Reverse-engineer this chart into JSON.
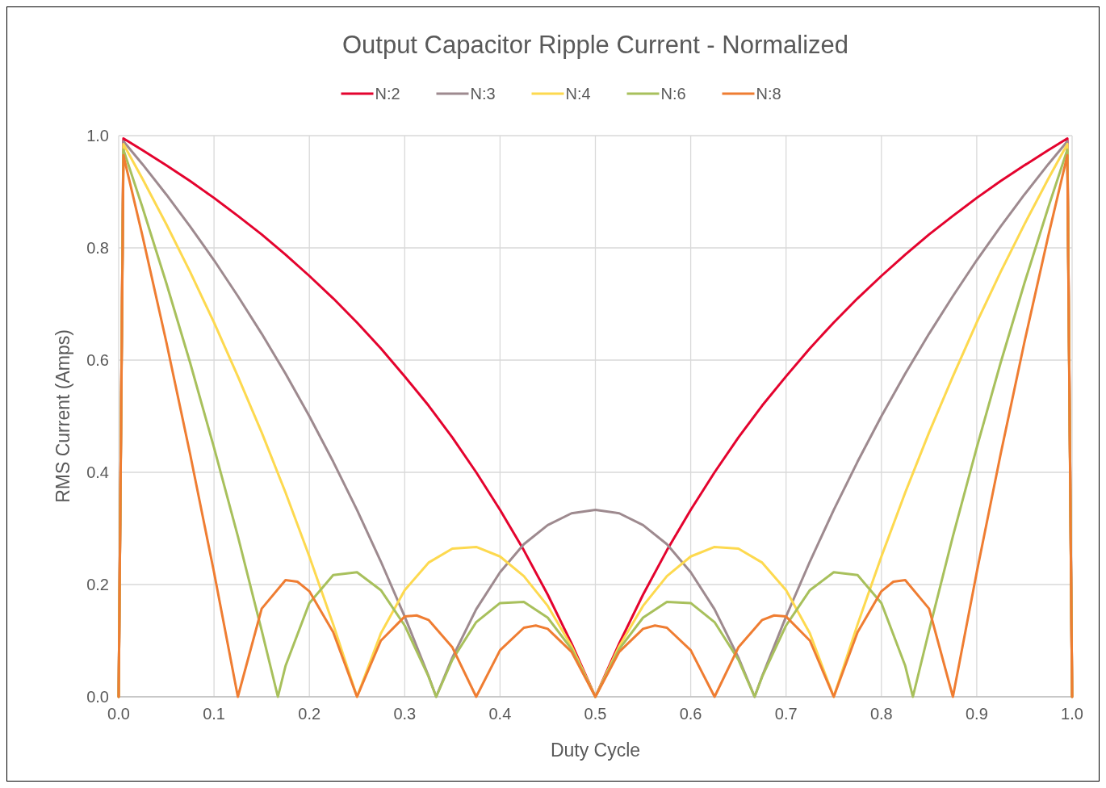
{
  "chart_data": {
    "type": "line",
    "title": "Output Capacitor Ripple Current - Normalized",
    "xlabel": "Duty Cycle",
    "ylabel": "RMS Current  (Amps)",
    "xlim": [
      0,
      1
    ],
    "ylim": [
      0,
      1
    ],
    "xticks": [
      {
        "value": 0,
        "label": "0.0"
      },
      0.1,
      0.2,
      0.3,
      0.4,
      0.5,
      0.6,
      0.7,
      0.8,
      0.9,
      {
        "value": 1,
        "label": "1.0"
      }
    ],
    "yticks": [
      {
        "value": 0,
        "label": "0.0"
      },
      0.2,
      0.4,
      0.6,
      0.8,
      {
        "value": 1,
        "label": "1.0"
      }
    ],
    "grid": true,
    "legend": "top",
    "marker": "none",
    "line_style": "solid",
    "series": [
      {
        "name": "N:2",
        "color": "#e4032e",
        "x": [
          0,
          0.005,
          0.025,
          0.05,
          0.075,
          0.1,
          0.125,
          0.15,
          0.175,
          0.2,
          0.225,
          0.25,
          0.275,
          0.3,
          0.325,
          0.35,
          0.375,
          0.4,
          0.425,
          0.45,
          0.475,
          0.5,
          0.525,
          0.55,
          0.575,
          0.6,
          0.625,
          0.65,
          0.675,
          0.7,
          0.725,
          0.75,
          0.775,
          0.8,
          0.825,
          0.85,
          0.875,
          0.9,
          0.925,
          0.95,
          0.975,
          0.995,
          1
        ],
        "values": [
          0,
          0.995,
          0.974,
          0.947,
          0.919,
          0.889,
          0.857,
          0.824,
          0.788,
          0.75,
          0.71,
          0.667,
          0.621,
          0.571,
          0.519,
          0.462,
          0.4,
          0.333,
          0.261,
          0.182,
          0.095,
          0,
          0.095,
          0.182,
          0.261,
          0.333,
          0.4,
          0.462,
          0.519,
          0.571,
          0.621,
          0.667,
          0.71,
          0.75,
          0.788,
          0.824,
          0.857,
          0.889,
          0.919,
          0.947,
          0.974,
          0.995,
          0
        ]
      },
      {
        "name": "N:3",
        "color": "#9e8a8f",
        "x": [
          0,
          0.005,
          0.025,
          0.05,
          0.075,
          0.1,
          0.125,
          0.15,
          0.175,
          0.2,
          0.225,
          0.25,
          0.275,
          0.3,
          0.325,
          0.333,
          0.35,
          0.375,
          0.4,
          0.425,
          0.45,
          0.475,
          0.5,
          0.525,
          0.55,
          0.575,
          0.6,
          0.625,
          0.65,
          0.667,
          0.675,
          0.7,
          0.725,
          0.75,
          0.775,
          0.8,
          0.825,
          0.85,
          0.875,
          0.9,
          0.925,
          0.95,
          0.975,
          0.995,
          1
        ],
        "values": [
          0,
          0.99,
          0.949,
          0.895,
          0.838,
          0.778,
          0.714,
          0.647,
          0.576,
          0.5,
          0.419,
          0.333,
          0.241,
          0.143,
          0.037,
          0,
          0.07,
          0.156,
          0.222,
          0.272,
          0.306,
          0.327,
          0.333,
          0.327,
          0.306,
          0.272,
          0.222,
          0.156,
          0.07,
          0,
          0.037,
          0.143,
          0.241,
          0.333,
          0.419,
          0.5,
          0.576,
          0.647,
          0.714,
          0.778,
          0.838,
          0.895,
          0.949,
          0.99,
          0
        ]
      },
      {
        "name": "N:4",
        "color": "#fdd94f",
        "x": [
          0,
          0.005,
          0.025,
          0.05,
          0.075,
          0.1,
          0.125,
          0.15,
          0.175,
          0.2,
          0.225,
          0.25,
          0.275,
          0.3,
          0.325,
          0.35,
          0.375,
          0.4,
          0.425,
          0.45,
          0.475,
          0.5,
          0.525,
          0.55,
          0.575,
          0.6,
          0.625,
          0.65,
          0.675,
          0.7,
          0.725,
          0.75,
          0.775,
          0.8,
          0.825,
          0.85,
          0.875,
          0.9,
          0.925,
          0.95,
          0.975,
          0.995,
          1
        ],
        "values": [
          0,
          0.985,
          0.923,
          0.842,
          0.757,
          0.667,
          0.571,
          0.471,
          0.364,
          0.25,
          0.129,
          0,
          0.113,
          0.19,
          0.239,
          0.264,
          0.267,
          0.25,
          0.215,
          0.162,
          0.09,
          0,
          0.09,
          0.162,
          0.215,
          0.25,
          0.267,
          0.264,
          0.239,
          0.19,
          0.113,
          0,
          0.129,
          0.25,
          0.364,
          0.471,
          0.571,
          0.667,
          0.757,
          0.842,
          0.923,
          0.985,
          0
        ]
      },
      {
        "name": "N:6",
        "color": "#a8c05c",
        "x": [
          0,
          0.005,
          0.025,
          0.05,
          0.075,
          0.1,
          0.125,
          0.15,
          0.167,
          0.175,
          0.2,
          0.225,
          0.25,
          0.275,
          0.3,
          0.325,
          0.333,
          0.35,
          0.375,
          0.4,
          0.425,
          0.45,
          0.475,
          0.5,
          0.525,
          0.55,
          0.575,
          0.6,
          0.625,
          0.65,
          0.667,
          0.675,
          0.7,
          0.725,
          0.75,
          0.775,
          0.8,
          0.825,
          0.833,
          0.85,
          0.875,
          0.9,
          0.925,
          0.95,
          0.975,
          0.995,
          1
        ],
        "values": [
          0,
          0.975,
          0.872,
          0.737,
          0.595,
          0.444,
          0.286,
          0.118,
          0,
          0.055,
          0.167,
          0.217,
          0.222,
          0.19,
          0.127,
          0.036,
          0,
          0.066,
          0.133,
          0.167,
          0.169,
          0.141,
          0.085,
          0,
          0.085,
          0.141,
          0.169,
          0.167,
          0.133,
          0.066,
          0,
          0.036,
          0.127,
          0.19,
          0.222,
          0.217,
          0.167,
          0.055,
          0,
          0.118,
          0.286,
          0.444,
          0.595,
          0.737,
          0.872,
          0.975,
          0
        ]
      },
      {
        "name": "N:8",
        "color": "#ef7d32",
        "x": [
          0,
          0.005,
          0.025,
          0.05,
          0.075,
          0.1,
          0.125,
          0.15,
          0.175,
          0.1875,
          0.2,
          0.225,
          0.25,
          0.275,
          0.3,
          0.3125,
          0.325,
          0.35,
          0.375,
          0.4,
          0.425,
          0.4375,
          0.45,
          0.475,
          0.5,
          0.525,
          0.55,
          0.5625,
          0.575,
          0.6,
          0.625,
          0.65,
          0.675,
          0.6875,
          0.7,
          0.725,
          0.75,
          0.775,
          0.8,
          0.8125,
          0.825,
          0.85,
          0.875,
          0.9,
          0.925,
          0.95,
          0.975,
          0.995,
          1
        ],
        "values": [
          0,
          0.965,
          0.821,
          0.632,
          0.432,
          0.222,
          0,
          0.157,
          0.208,
          0.205,
          0.188,
          0.115,
          0,
          0.1,
          0.143,
          0.145,
          0.137,
          0.088,
          0,
          0.083,
          0.123,
          0.127,
          0.121,
          0.08,
          0,
          0.08,
          0.121,
          0.127,
          0.123,
          0.083,
          0,
          0.088,
          0.137,
          0.145,
          0.143,
          0.1,
          0,
          0.115,
          0.188,
          0.205,
          0.208,
          0.157,
          0,
          0.222,
          0.432,
          0.632,
          0.821,
          0.965,
          0
        ]
      }
    ]
  }
}
